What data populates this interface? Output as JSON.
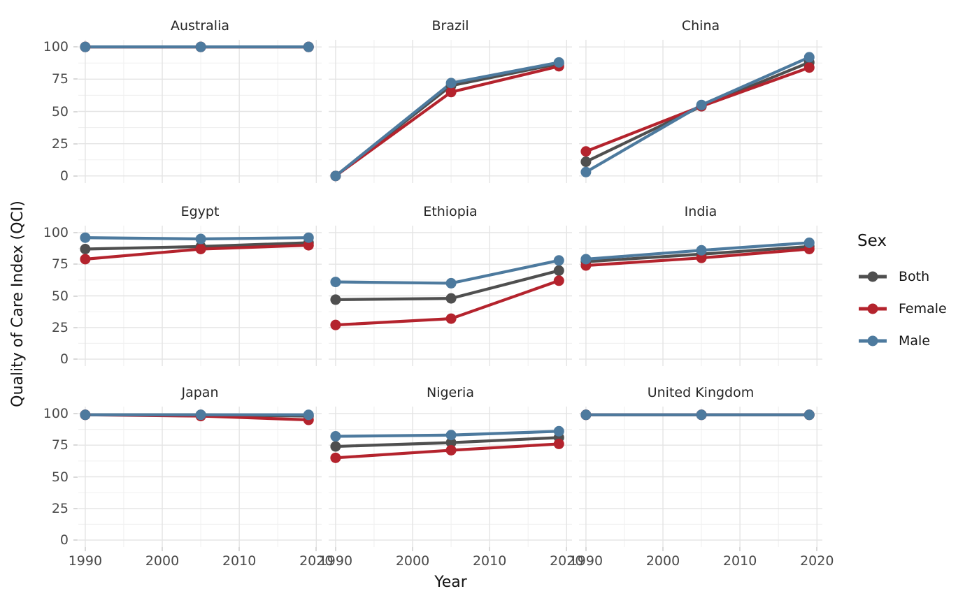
{
  "chart_data": {
    "type": "line",
    "title": "",
    "xlabel": "Year",
    "ylabel": "Quality of Care Index (QCI)",
    "x": [
      1990,
      2005,
      2019
    ],
    "x_ticks": [
      1990,
      2000,
      2010,
      2020
    ],
    "y_ticks": [
      0,
      25,
      50,
      75,
      100
    ],
    "xlim": [
      1989.1,
      2020.7
    ],
    "ylim": [
      -5.5,
      105.5
    ],
    "grid": "major+minor",
    "legend": {
      "title": "Sex",
      "position": "right",
      "entries": [
        {
          "name": "Both",
          "color": "#4F4F4F"
        },
        {
          "name": "Female",
          "color": "#B4232D"
        },
        {
          "name": "Male",
          "color": "#4D7A9E"
        }
      ]
    },
    "facets": [
      {
        "title": "Australia",
        "series": [
          {
            "name": "Both",
            "values": [
              100,
              100,
              100
            ]
          },
          {
            "name": "Female",
            "values": [
              100,
              100,
              100
            ]
          },
          {
            "name": "Male",
            "values": [
              100,
              100,
              100
            ]
          }
        ]
      },
      {
        "title": "Brazil",
        "series": [
          {
            "name": "Both",
            "values": [
              0,
              70,
              87
            ]
          },
          {
            "name": "Female",
            "values": [
              0,
              65,
              85
            ]
          },
          {
            "name": "Male",
            "values": [
              0,
              72,
              88
            ]
          }
        ]
      },
      {
        "title": "China",
        "series": [
          {
            "name": "Both",
            "values": [
              11,
              54,
              88
            ]
          },
          {
            "name": "Female",
            "values": [
              19,
              54,
              84
            ]
          },
          {
            "name": "Male",
            "values": [
              3,
              55,
              92
            ]
          }
        ]
      },
      {
        "title": "Egypt",
        "series": [
          {
            "name": "Both",
            "values": [
              87,
              89,
              92
            ]
          },
          {
            "name": "Female",
            "values": [
              79,
              87,
              90
            ]
          },
          {
            "name": "Male",
            "values": [
              96,
              95,
              96
            ]
          }
        ]
      },
      {
        "title": "Ethiopia",
        "series": [
          {
            "name": "Both",
            "values": [
              47,
              48,
              70
            ]
          },
          {
            "name": "Female",
            "values": [
              27,
              32,
              62
            ]
          },
          {
            "name": "Male",
            "values": [
              61,
              60,
              78
            ]
          }
        ]
      },
      {
        "title": "India",
        "series": [
          {
            "name": "Both",
            "values": [
              77,
              83,
              89
            ]
          },
          {
            "name": "Female",
            "values": [
              74,
              80,
              87
            ]
          },
          {
            "name": "Male",
            "values": [
              79,
              86,
              92
            ]
          }
        ]
      },
      {
        "title": "Japan",
        "series": [
          {
            "name": "Both",
            "values": [
              99,
              99,
              98
            ]
          },
          {
            "name": "Female",
            "values": [
              99,
              98,
              95
            ]
          },
          {
            "name": "Male",
            "values": [
              99,
              99,
              99
            ]
          }
        ]
      },
      {
        "title": "Nigeria",
        "series": [
          {
            "name": "Both",
            "values": [
              74,
              77,
              81
            ]
          },
          {
            "name": "Female",
            "values": [
              65,
              71,
              76
            ]
          },
          {
            "name": "Male",
            "values": [
              82,
              83,
              86
            ]
          }
        ]
      },
      {
        "title": "United Kingdom",
        "series": [
          {
            "name": "Both",
            "values": [
              99,
              99,
              99
            ]
          },
          {
            "name": "Female",
            "values": [
              99,
              99,
              99
            ]
          },
          {
            "name": "Male",
            "values": [
              99,
              99,
              99
            ]
          }
        ]
      }
    ]
  }
}
